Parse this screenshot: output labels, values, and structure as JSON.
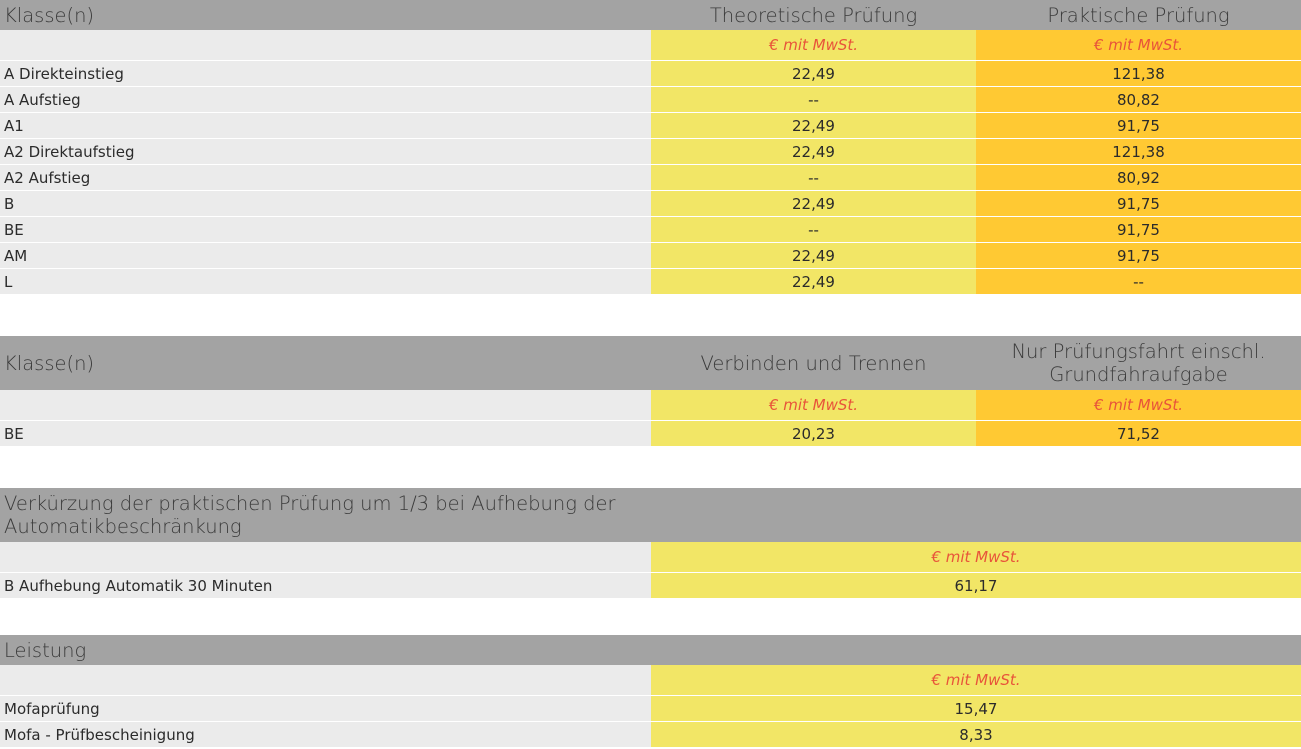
{
  "unit_label": "€ mit MwSt.",
  "colors": {
    "header_bg": "#a3a3a3",
    "label_bg": "#ebebeb",
    "yellow": "#f2e666",
    "orange": "#ffc933",
    "unit_text": "#e8543a"
  },
  "table1": {
    "headers": [
      "Klasse(n)",
      "Theoretische Prüfung",
      "Praktische Prüfung"
    ],
    "rows": [
      {
        "label": "A Direkteinstieg",
        "theory": "22,49",
        "practical": "121,38"
      },
      {
        "label": "A Aufstieg",
        "theory": "--",
        "practical": "80,82"
      },
      {
        "label": "A1",
        "theory": "22,49",
        "practical": "91,75"
      },
      {
        "label": "A2 Direktaufstieg",
        "theory": "22,49",
        "practical": "121,38"
      },
      {
        "label": "A2 Aufstieg",
        "theory": "--",
        "practical": "80,92"
      },
      {
        "label": "B",
        "theory": "22,49",
        "practical": "91,75"
      },
      {
        "label": "BE",
        "theory": "--",
        "practical": "91,75"
      },
      {
        "label": "AM",
        "theory": "22,49",
        "practical": "91,75"
      },
      {
        "label": "L",
        "theory": "22,49",
        "practical": "--"
      }
    ]
  },
  "table2": {
    "headers": [
      "Klasse(n)",
      "Verbinden und Trennen",
      "Nur Prüfungsfahrt einschl. Grundfahraufgabe"
    ],
    "rows": [
      {
        "label": "BE",
        "connect": "20,23",
        "drive": "71,52"
      }
    ]
  },
  "table3": {
    "header": "Verkürzung der praktischen Prüfung um 1/3 bei Aufhebung der Automatikbeschränkung",
    "rows": [
      {
        "label": "B Aufhebung Automatik 30 Minuten",
        "value": "61,17"
      }
    ]
  },
  "table4": {
    "header": "Leistung",
    "rows": [
      {
        "label": "Mofaprüfung",
        "value": "15,47"
      },
      {
        "label": "Mofa - Prüfbescheinigung",
        "value": "8,33"
      }
    ]
  }
}
